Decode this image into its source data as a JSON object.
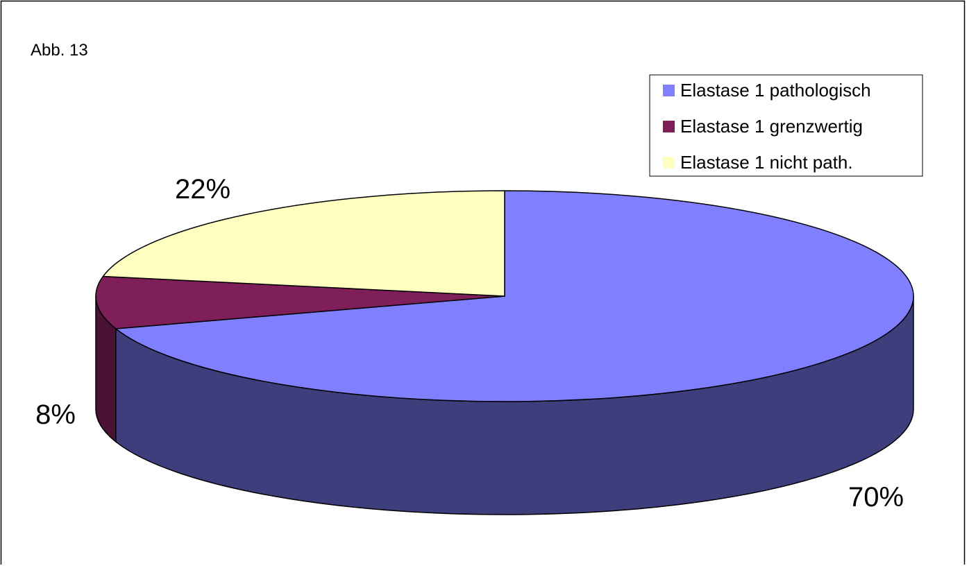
{
  "figure_label": "Abb. 13",
  "chart_data": {
    "type": "pie",
    "three_d": true,
    "slices": [
      {
        "name": "Elastase 1 pathologisch",
        "value": 70,
        "label": "70%",
        "color": "#8080ff",
        "side_color": "#3e3e7d"
      },
      {
        "name": "Elastase 1 grenzwertig",
        "value": 8,
        "label": "8%",
        "color": "#7f1f5a",
        "side_color": "#4a1234"
      },
      {
        "name": "Elastase 1 nicht path.",
        "value": 22,
        "label": "22%",
        "color": "#ffffc0",
        "side_color": "#b5b58a"
      }
    ],
    "legend_position": "top-right"
  }
}
